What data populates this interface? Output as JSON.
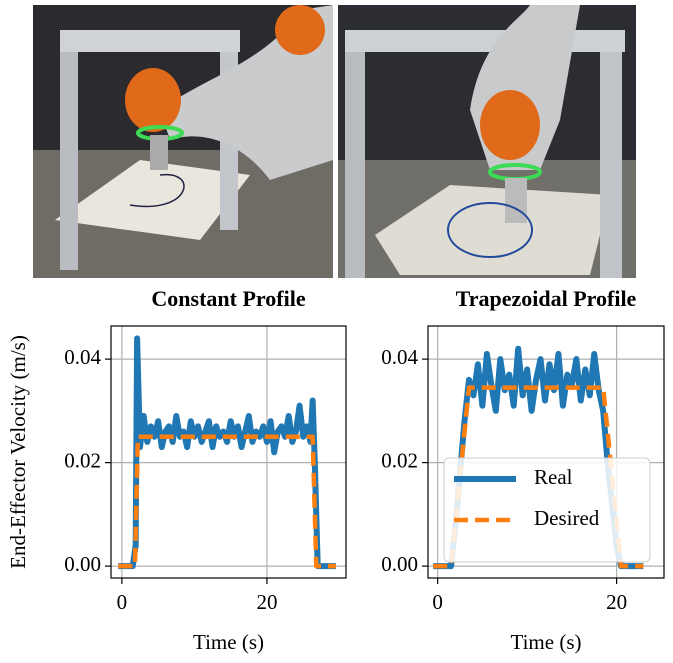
{
  "chart_data": [
    {
      "type": "line",
      "title": "Constant Profile",
      "xlabel": "Time (s)",
      "ylabel": "End-Effector Velocity (m/s)",
      "xlim": [
        -1.5,
        30.9
      ],
      "ylim": [
        -0.0023,
        0.0464
      ],
      "xticks": [
        0,
        20
      ],
      "yticks": [
        {
          "value": 0,
          "label": "0.00"
        },
        {
          "value": 0.02,
          "label": "0.02"
        },
        {
          "value": 0.04,
          "label": "0.04"
        }
      ],
      "grid": true,
      "series": [
        {
          "color": "#1f77b4",
          "style": "solid",
          "x": [
            -0.5,
            1.5,
            1.9,
            2.1,
            2.5,
            3,
            3.5,
            4,
            4.5,
            5,
            5.5,
            6,
            6.5,
            7,
            7.5,
            8,
            8.5,
            9,
            9.5,
            10,
            10.5,
            11,
            11.5,
            12,
            12.5,
            13,
            13.5,
            14,
            14.5,
            15,
            15.5,
            16,
            16.5,
            17,
            17.5,
            18,
            18.5,
            19,
            19.5,
            20,
            20.5,
            21,
            21.5,
            22,
            22.5,
            23,
            23.5,
            24,
            24.5,
            25,
            25.5,
            26,
            26.3,
            26.6,
            27,
            29.5
          ],
          "values": [
            0,
            0,
            0.004,
            0.044,
            0.023,
            0.029,
            0.024,
            0.027,
            0.025,
            0.028,
            0.023,
            0.026,
            0.027,
            0.024,
            0.029,
            0.025,
            0.026,
            0.023,
            0.028,
            0.025,
            0.027,
            0.024,
            0.026,
            0.028,
            0.023,
            0.027,
            0.025,
            0.026,
            0.024,
            0.028,
            0.025,
            0.027,
            0.023,
            0.026,
            0.029,
            0.024,
            0.026,
            0.025,
            0.027,
            0.024,
            0.028,
            0.022,
            0.026,
            0.027,
            0.025,
            0.029,
            0.024,
            0.026,
            0.031,
            0.025,
            0.027,
            0.024,
            0.032,
            0.02,
            0,
            0
          ]
        },
        {
          "color": "#ff7f0e",
          "style": "dashed",
          "x": [
            -0.5,
            1.8,
            2.2,
            26.3,
            26.8,
            29.5
          ],
          "values": [
            0,
            0,
            0.025,
            0.025,
            0,
            0
          ]
        }
      ]
    },
    {
      "type": "line",
      "title": "Trapezoidal Profile",
      "xlabel": "Time (s)",
      "xlim": [
        -1.08,
        25.3
      ],
      "ylim": [
        -0.0023,
        0.0464
      ],
      "xticks": [
        0,
        20
      ],
      "yticks": [
        {
          "value": 0,
          "label": "0.00"
        },
        {
          "value": 0.02,
          "label": "0.02"
        },
        {
          "value": 0.04,
          "label": "0.04"
        }
      ],
      "grid": true,
      "legend": "lower right",
      "series": [
        {
          "name": "Real",
          "color": "#1f77b4",
          "style": "solid",
          "x": [
            -0.5,
            1.5,
            2,
            2.5,
            3,
            3.5,
            4,
            4.5,
            5,
            5.5,
            6,
            6.5,
            7,
            7.5,
            8,
            8.5,
            9,
            9.5,
            10,
            10.5,
            11,
            11.5,
            12,
            12.5,
            13,
            13.5,
            14,
            14.5,
            15,
            15.5,
            16,
            16.5,
            17,
            17.5,
            18,
            18.5,
            19,
            19.5,
            20,
            20.5,
            23
          ],
          "values": [
            0,
            0,
            0.008,
            0.018,
            0.028,
            0.036,
            0.033,
            0.039,
            0.031,
            0.041,
            0.035,
            0.03,
            0.04,
            0.034,
            0.037,
            0.031,
            0.042,
            0.033,
            0.038,
            0.03,
            0.036,
            0.04,
            0.032,
            0.039,
            0.034,
            0.041,
            0.031,
            0.037,
            0.035,
            0.04,
            0.032,
            0.038,
            0.033,
            0.041,
            0.034,
            0.03,
            0.02,
            0.012,
            0.004,
            0,
            0
          ]
        },
        {
          "name": "Desired",
          "color": "#ff7f0e",
          "style": "dashed",
          "x": [
            -0.5,
            1.5,
            3.5,
            18.5,
            20.5,
            23
          ],
          "values": [
            0,
            0,
            0.0345,
            0.0345,
            0,
            0
          ]
        }
      ]
    }
  ]
}
